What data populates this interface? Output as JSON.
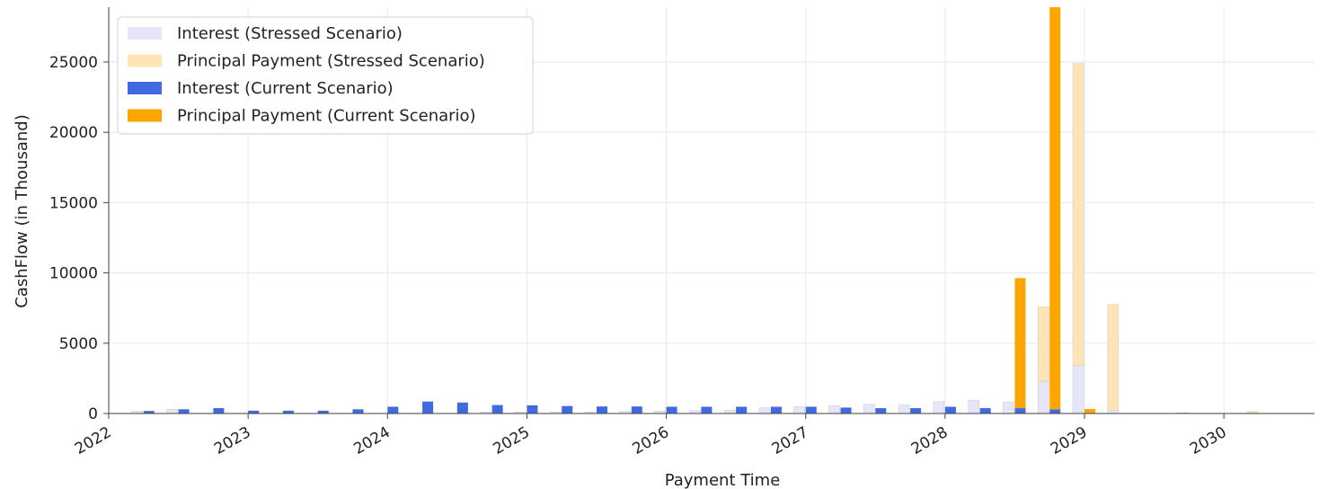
{
  "chart_data": {
    "type": "bar",
    "title": "",
    "xlabel": "Payment Time",
    "ylabel": "CashFlow (in Thousand)",
    "x_ticks": [
      "2022",
      "2023",
      "2024",
      "2025",
      "2026",
      "2027",
      "2028",
      "2029",
      "2030"
    ],
    "y_ticks": [
      "0",
      "5000",
      "10000",
      "15000",
      "20000",
      "25000"
    ],
    "xlim": [
      2022,
      2030.65
    ],
    "ylim": [
      0,
      28900
    ],
    "grid": true,
    "legend_position": "top-left",
    "colors": {
      "interest_stressed": "#e6e6fa",
      "principal_stressed": "#ffe4b5",
      "interest_current": "#4169e1",
      "principal_current": "#ffa500"
    },
    "series": [
      {
        "name": "Interest (Stressed Scenario)",
        "x": [
          2022.25,
          2022.5,
          2022.75,
          2023.0,
          2023.25,
          2023.5,
          2023.75,
          2024.0,
          2024.25,
          2024.5,
          2024.75,
          2025.0,
          2025.25,
          2025.5,
          2025.75,
          2026.0,
          2026.25,
          2026.5,
          2026.75,
          2027.0,
          2027.25,
          2027.5,
          2027.75,
          2028.0,
          2028.25,
          2028.5,
          2028.75,
          2029.0,
          2029.25,
          2029.5,
          2029.75,
          2030.0,
          2030.25
        ],
        "values": [
          180,
          300,
          0,
          0,
          0,
          0,
          0,
          0,
          0,
          0,
          120,
          100,
          100,
          120,
          150,
          180,
          200,
          250,
          400,
          480,
          550,
          650,
          600,
          850,
          950,
          800,
          2300,
          3400,
          200,
          0,
          0,
          0,
          40
        ]
      },
      {
        "name": "Principal Payment (Stressed Scenario)",
        "x": [
          2022.25,
          2022.5,
          2022.75,
          2023.0,
          2023.25,
          2023.5,
          2023.75,
          2024.0,
          2024.25,
          2024.5,
          2024.75,
          2025.0,
          2025.25,
          2025.5,
          2025.75,
          2026.0,
          2026.25,
          2026.5,
          2026.75,
          2027.0,
          2027.25,
          2027.5,
          2027.75,
          2028.0,
          2028.25,
          2028.5,
          2028.75,
          2029.0,
          2029.25,
          2029.5,
          2029.75,
          2030.0,
          2030.25
        ],
        "values": [
          0,
          0,
          0,
          0,
          0,
          0,
          0,
          0,
          0,
          0,
          0,
          0,
          0,
          0,
          0,
          0,
          0,
          0,
          0,
          0,
          0,
          0,
          0,
          0,
          0,
          0,
          5300,
          21500,
          7550,
          0,
          60,
          0,
          100
        ]
      },
      {
        "name": "Interest (Current Scenario)",
        "x": [
          2022.25,
          2022.5,
          2022.75,
          2023.0,
          2023.25,
          2023.5,
          2023.75,
          2024.0,
          2024.25,
          2024.5,
          2024.75,
          2025.0,
          2025.25,
          2025.5,
          2025.75,
          2026.0,
          2026.25,
          2026.5,
          2026.75,
          2027.0,
          2027.25,
          2027.5,
          2027.75,
          2028.0,
          2028.25,
          2028.5,
          2028.75,
          2029.0
        ],
        "values": [
          180,
          300,
          380,
          200,
          200,
          200,
          300,
          480,
          850,
          780,
          600,
          580,
          530,
          500,
          500,
          480,
          480,
          480,
          480,
          480,
          420,
          380,
          380,
          480,
          380,
          380,
          300,
          0
        ]
      },
      {
        "name": "Principal Payment (Current Scenario)",
        "x": [
          2022.25,
          2022.5,
          2022.75,
          2023.0,
          2023.25,
          2023.5,
          2023.75,
          2024.0,
          2024.25,
          2024.5,
          2024.75,
          2025.0,
          2025.25,
          2025.5,
          2025.75,
          2026.0,
          2026.25,
          2026.5,
          2026.75,
          2027.0,
          2027.25,
          2027.5,
          2027.75,
          2028.0,
          2028.25,
          2028.5,
          2028.75,
          2029.0
        ],
        "values": [
          0,
          0,
          0,
          0,
          0,
          0,
          0,
          0,
          0,
          0,
          0,
          0,
          0,
          0,
          0,
          0,
          0,
          0,
          0,
          0,
          0,
          0,
          0,
          0,
          0,
          9250,
          28600,
          320
        ]
      }
    ]
  }
}
